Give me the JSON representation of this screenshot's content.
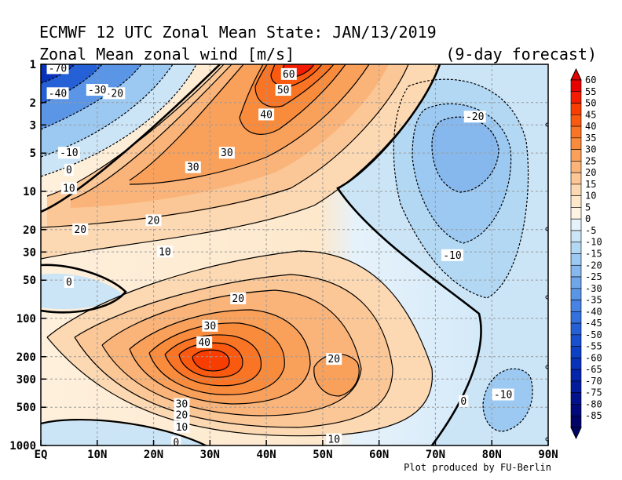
{
  "chart_data": {
    "type": "heatmap",
    "title": "ECMWF 12 UTC Zonal Mean State: JAN/13/2019",
    "subtitle": "Zonal Mean zonal wind [m/s]",
    "forecast_label": "(9-day forecast)",
    "credit": "Plot produced by FU-Berlin",
    "x_axis": {
      "ticks": [
        "EQ",
        "10N",
        "20N",
        "30N",
        "40N",
        "50N",
        "60N",
        "70N",
        "80N",
        "90N"
      ],
      "range": [
        0,
        90
      ],
      "unit": "latitude"
    },
    "y_axis": {
      "scale": "log",
      "reversed": true,
      "ticks": [
        1,
        2,
        3,
        5,
        10,
        20,
        30,
        50,
        100,
        200,
        300,
        500,
        1000
      ],
      "range": [
        1,
        1000
      ],
      "unit": "hPa"
    },
    "grid": true,
    "colorbar": {
      "placement": "right",
      "levels": [
        60,
        55,
        50,
        45,
        40,
        35,
        30,
        25,
        20,
        15,
        10,
        5,
        0,
        -5,
        -10,
        -15,
        -20,
        -25,
        -30,
        -35,
        -40,
        -45,
        -50,
        -55,
        -60,
        -65,
        -70,
        -75,
        -80,
        -85
      ],
      "colors": [
        "#e60000",
        "#f21c00",
        "#f83d00",
        "#fa5a10",
        "#f97424",
        "#f98b3c",
        "#f9a05a",
        "#fab479",
        "#fbc797",
        "#fcd9b3",
        "#fde8cc",
        "#fef4e3",
        "#e6f2fb",
        "#cbe5f7",
        "#b3d8f4",
        "#9cc9f1",
        "#86b8ee",
        "#6fa6ea",
        "#5a95e6",
        "#4783e2",
        "#3571dd",
        "#2560d7",
        "#1850cf",
        "#0e40c5",
        "#0832b9",
        "#0426ab",
        "#021c9c",
        "#01128c",
        "#000a7c",
        "#000468"
      ],
      "top_arrow_color": "#e60000",
      "bottom_arrow_color": "#000468"
    },
    "series": [
      {
        "name": "60",
        "lat": 44,
        "p": 1.2,
        "value": 60
      },
      {
        "name": "50",
        "lat": 43,
        "p": 1.6,
        "value": 50
      },
      {
        "name": "40",
        "lat": 40,
        "p": 2.5,
        "value": 40
      },
      {
        "name": "30",
        "lat": 33,
        "p": 5,
        "value": 30
      },
      {
        "name": "30",
        "lat": 27,
        "p": 6.5,
        "value": 30
      },
      {
        "name": "20",
        "lat": 20,
        "p": 17,
        "value": 20
      },
      {
        "name": "20",
        "lat": 7,
        "p": 20,
        "value": 20
      },
      {
        "name": "10",
        "lat": 22,
        "p": 30,
        "value": 10
      },
      {
        "name": "10",
        "lat": 5,
        "p": 9.5,
        "value": 10
      },
      {
        "name": "0",
        "lat": 5,
        "p": 52,
        "value": 0
      },
      {
        "name": "0",
        "lat": 5,
        "p": 6.8,
        "value": 0
      },
      {
        "name": "-10",
        "lat": 5,
        "p": 5,
        "value": -10
      },
      {
        "name": "-20",
        "lat": 13,
        "p": 1.7,
        "value": -20
      },
      {
        "name": "-30",
        "lat": 10,
        "p": 1.6,
        "value": -30
      },
      {
        "name": "-40",
        "lat": 3,
        "p": 1.7,
        "value": -40
      },
      {
        "name": "-70",
        "lat": 3,
        "p": 1.08,
        "value": -70
      },
      {
        "name": "20",
        "lat": 35,
        "p": 70,
        "value": 20
      },
      {
        "name": "30",
        "lat": 30,
        "p": 115,
        "value": 30
      },
      {
        "name": "40",
        "lat": 29,
        "p": 155,
        "value": 40
      },
      {
        "name": "30",
        "lat": 25,
        "p": 475,
        "value": 30
      },
      {
        "name": "20",
        "lat": 25,
        "p": 580,
        "value": 20
      },
      {
        "name": "10",
        "lat": 25,
        "p": 720,
        "value": 10
      },
      {
        "name": "0",
        "lat": 24,
        "p": 950,
        "value": 0
      },
      {
        "name": "20",
        "lat": 52,
        "p": 210,
        "value": 20
      },
      {
        "name": "10",
        "lat": 52,
        "p": 900,
        "value": 10
      },
      {
        "name": "0",
        "lat": 75,
        "p": 450,
        "value": 0
      },
      {
        "name": "-10",
        "lat": 73,
        "p": 32,
        "value": -10
      },
      {
        "name": "-20",
        "lat": 77,
        "p": 2.6,
        "value": -20
      },
      {
        "name": "-10",
        "lat": 82,
        "p": 400,
        "value": -10
      }
    ]
  }
}
